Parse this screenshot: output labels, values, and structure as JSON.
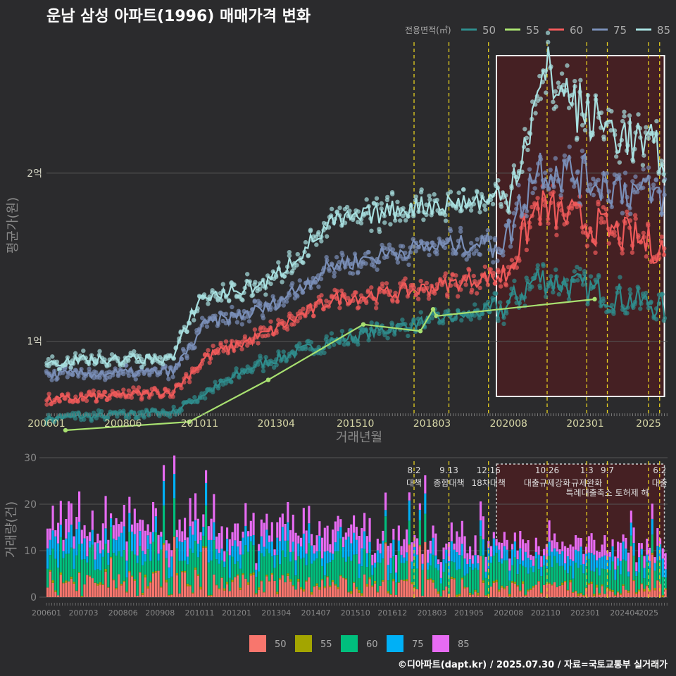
{
  "title": "운남 삼성 아파트(1996) 매매가격 변화",
  "source": "©디아파트(dapt.kr) / 2025.07.30 / 자료=국토교통부 실거래가",
  "colors": {
    "background": "#2b2b2d",
    "grid": "#555555",
    "policy_line": "#e6d020",
    "highlight_fill": "#4a1e22",
    "highlight_border": "#ffffff"
  },
  "chart_data": [
    {
      "type": "line",
      "name": "price",
      "xlabel": "거래년월",
      "ylabel": "평균가(원)",
      "x_ticks": [
        "200601",
        "200806",
        "201011",
        "201304",
        "201510",
        "201803",
        "202008",
        "202301",
        "2025"
      ],
      "y_ticks": [
        {
          "value": 1,
          "label": "1억"
        },
        {
          "value": 2,
          "label": "2억"
        }
      ],
      "ylim": [
        0.6,
        2.8
      ],
      "xlim": [
        2006.0,
        2025.6
      ],
      "highlight_range": [
        2020.2,
        2025.5
      ],
      "legend_title": "전용면적(㎡)",
      "legend_position": "top-right",
      "series": [
        {
          "name": "50",
          "color": "#2f8c8c",
          "anchors": [
            [
              2006.0,
              0.54
            ],
            [
              2010.0,
              0.58
            ],
            [
              2012.5,
              0.85
            ],
            [
              2015.0,
              1.0
            ],
            [
              2017.5,
              1.1
            ],
            [
              2020.5,
              1.2
            ],
            [
              2021.5,
              1.38
            ],
            [
              2025.5,
              1.2
            ]
          ]
        },
        {
          "name": "55",
          "color": "#a8e070",
          "anchors": [
            [
              2006.6,
              0.47
            ],
            [
              2010.5,
              0.52
            ],
            [
              2013.0,
              0.77
            ],
            [
              2016.0,
              1.1
            ],
            [
              2017.8,
              1.06
            ],
            [
              2018.2,
              1.19
            ],
            [
              2018.3,
              1.15
            ],
            [
              2023.3,
              1.25
            ]
          ]
        },
        {
          "name": "60",
          "color": "#f05a5a",
          "anchors": [
            [
              2006.0,
              0.65
            ],
            [
              2010.0,
              0.7
            ],
            [
              2011.0,
              0.9
            ],
            [
              2013.0,
              1.05
            ],
            [
              2015.0,
              1.25
            ],
            [
              2017.5,
              1.3
            ],
            [
              2020.5,
              1.4
            ],
            [
              2021.5,
              1.8
            ],
            [
              2025.5,
              1.55
            ]
          ]
        },
        {
          "name": "75",
          "color": "#7a8fb8",
          "anchors": [
            [
              2006.0,
              0.8
            ],
            [
              2010.0,
              0.82
            ],
            [
              2011.0,
              1.1
            ],
            [
              2013.0,
              1.2
            ],
            [
              2015.0,
              1.45
            ],
            [
              2017.5,
              1.55
            ],
            [
              2020.5,
              1.6
            ],
            [
              2021.5,
              2.05
            ],
            [
              2025.5,
              1.85
            ]
          ]
        },
        {
          "name": "85",
          "color": "#a8e0e0",
          "anchors": [
            [
              2006.0,
              0.88
            ],
            [
              2010.0,
              0.9
            ],
            [
              2010.8,
              1.25
            ],
            [
              2013.0,
              1.35
            ],
            [
              2015.0,
              1.7
            ],
            [
              2017.5,
              1.8
            ],
            [
              2020.5,
              1.85
            ],
            [
              2021.8,
              2.6
            ],
            [
              2023.0,
              2.35
            ],
            [
              2025.5,
              2.1
            ]
          ]
        }
      ]
    },
    {
      "type": "bar",
      "name": "volume",
      "ylabel": "거래량(건)",
      "y_ticks": [
        0,
        10,
        20,
        30
      ],
      "ylim": [
        0,
        30
      ],
      "xlim": [
        2006.0,
        2025.6
      ],
      "x_ticks": [
        "200601",
        "200703",
        "200806",
        "200908",
        "201011",
        "201201",
        "201304",
        "201407",
        "201510",
        "201612",
        "201803",
        "201905",
        "202008",
        "202110",
        "202301",
        "202404",
        "2025"
      ],
      "stacked": true,
      "legend_position": "bottom",
      "series": [
        {
          "name": "50",
          "color": "#f8766d"
        },
        {
          "name": "55",
          "color": "#a3a500"
        },
        {
          "name": "60",
          "color": "#00bf7d"
        },
        {
          "name": "75",
          "color": "#00b0f6"
        },
        {
          "name": "85",
          "color": "#e76bf3"
        }
      ],
      "highlight_range": [
        2020.2,
        2025.5
      ]
    }
  ],
  "policies": [
    {
      "x": 2017.6,
      "date": "8.2",
      "label": "대책"
    },
    {
      "x": 2018.7,
      "date": "9.13",
      "label": "종합대책"
    },
    {
      "x": 2019.95,
      "date": "12.16",
      "label": "18차대책"
    },
    {
      "x": 2021.8,
      "date": "10.26",
      "label": "대출규제강화"
    },
    {
      "x": 2023.05,
      "date": "1.3",
      "label": "규제완화"
    },
    {
      "x": 2023.7,
      "date": "9.7",
      "label": "특례대출축소 토허제 해"
    },
    {
      "x": 2025.0,
      "date": "",
      "label": ""
    },
    {
      "x": 2025.35,
      "date": "6.2",
      "label": "대출"
    }
  ]
}
